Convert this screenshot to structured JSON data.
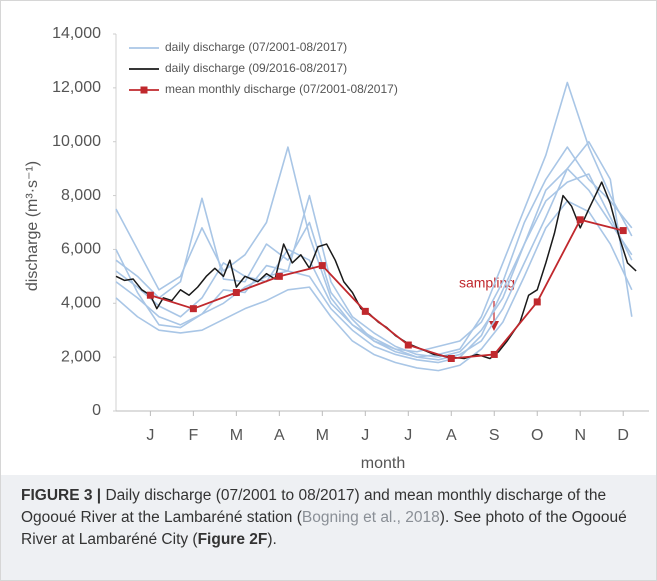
{
  "chart_data": {
    "type": "line",
    "y_label": "discharge (m³·s⁻¹)",
    "x_label": "month",
    "annotation": "sampling",
    "xlim": [
      0.2,
      12.6
    ],
    "xticks": [
      {
        "value": 1,
        "label": "J"
      },
      {
        "value": 2,
        "label": "F"
      },
      {
        "value": 3,
        "label": "M"
      },
      {
        "value": 4,
        "label": "A"
      },
      {
        "value": 5,
        "label": "M"
      },
      {
        "value": 6,
        "label": "J"
      },
      {
        "value": 7,
        "label": "J"
      },
      {
        "value": 8,
        "label": "A"
      },
      {
        "value": 9,
        "label": "S"
      },
      {
        "value": 10,
        "label": "O"
      },
      {
        "value": 11,
        "label": "N"
      },
      {
        "value": 12,
        "label": "D"
      }
    ],
    "ylim": [
      0,
      14000
    ],
    "yticks": [
      0,
      {
        "value": 2000,
        "label": "2,000"
      },
      {
        "value": 4000,
        "label": "4,000"
      },
      {
        "value": 6000,
        "label": "6,000"
      },
      {
        "value": 8000,
        "label": "8,000"
      },
      {
        "value": 10000,
        "label": "10,000"
      },
      {
        "value": 12000,
        "label": "12,000"
      },
      {
        "value": 14000,
        "label": "14,000"
      }
    ],
    "series": [
      {
        "name": "daily discharge (07/2001-08/2017)",
        "color": "#a9c6e6",
        "x": [
          0.2,
          0.7,
          1.2,
          1.7,
          2.2,
          2.7,
          3.2,
          3.7,
          4.2,
          4.7,
          5.2,
          5.7,
          6.2,
          6.7,
          7.2,
          7.7,
          8.2,
          8.7,
          9.2,
          9.7,
          10.2,
          10.7,
          11.2,
          11.7,
          12.2
        ],
        "lines": [
          [
            7500,
            6000,
            4500,
            5000,
            6800,
            5200,
            5800,
            7000,
            9800,
            6500,
            4200,
            3200,
            2600,
            2300,
            2000,
            2100,
            2300,
            3500,
            5500,
            7500,
            9500,
            12200,
            9800,
            8000,
            6500
          ],
          [
            4800,
            4200,
            3500,
            3200,
            3600,
            4000,
            4600,
            5000,
            5200,
            5000,
            3800,
            3000,
            2400,
            2100,
            1900,
            1800,
            2000,
            2800,
            4500,
            6200,
            7800,
            8500,
            8800,
            7200,
            5600
          ],
          [
            5200,
            4600,
            3900,
            3500,
            4200,
            5500,
            5000,
            4800,
            6000,
            5600,
            4000,
            3200,
            2700,
            2300,
            2200,
            2400,
            2600,
            3300,
            4800,
            7000,
            8600,
            9800,
            8600,
            7800,
            6800
          ],
          [
            4200,
            3500,
            3000,
            2900,
            3000,
            3400,
            3800,
            4100,
            4500,
            4600,
            3500,
            2600,
            2100,
            1800,
            1600,
            1500,
            1700,
            2300,
            3300,
            5000,
            6800,
            7800,
            7400,
            6200,
            4500
          ],
          [
            6000,
            4400,
            3200,
            3100,
            3600,
            4500,
            4400,
            5400,
            5200,
            8000,
            4800,
            3500,
            2900,
            2400,
            2100,
            2000,
            2200,
            3000,
            4200,
            6200,
            8200,
            9000,
            10000,
            8600,
            3500
          ],
          [
            5600,
            5000,
            4200,
            4800,
            7900,
            4900,
            4800,
            6200,
            5600,
            7000,
            4400,
            3400,
            2600,
            2200,
            2000,
            1900,
            2100,
            2600,
            3800,
            5500,
            7200,
            9000,
            8200,
            7000,
            5800
          ]
        ]
      },
      {
        "name": "daily discharge (09/2016-08/2017)",
        "color": "#1a1a1a",
        "x": [
          0.2,
          0.4,
          0.6,
          0.8,
          1.0,
          1.15,
          1.3,
          1.5,
          1.7,
          1.9,
          2.1,
          2.3,
          2.5,
          2.7,
          2.85,
          3.0,
          3.2,
          3.5,
          3.7,
          3.9,
          4.1,
          4.3,
          4.5,
          4.7,
          4.9,
          5.1,
          5.3,
          5.5,
          5.7,
          5.9,
          6.1,
          6.3,
          6.5,
          6.7,
          7.0,
          7.3,
          7.6,
          8.0,
          8.3,
          8.6,
          8.9,
          9.1,
          9.3,
          9.6,
          9.8,
          10.0,
          10.2,
          10.4,
          10.6,
          10.8,
          11.0,
          11.2,
          11.5,
          11.7,
          11.9,
          12.1,
          12.3
        ],
        "values": [
          5000,
          4850,
          4900,
          4500,
          4300,
          3800,
          4200,
          4100,
          4500,
          4300,
          4600,
          5000,
          5300,
          5000,
          5600,
          4600,
          5000,
          4800,
          5100,
          4900,
          6200,
          5500,
          5800,
          5300,
          6100,
          6200,
          5600,
          4800,
          4400,
          3800,
          3600,
          3300,
          3100,
          2800,
          2500,
          2300,
          2100,
          2000,
          1950,
          2100,
          1950,
          2200,
          2600,
          3300,
          4300,
          4500,
          5500,
          6600,
          8000,
          7600,
          6800,
          7500,
          8500,
          7700,
          6500,
          5500,
          5200
        ]
      },
      {
        "name": "mean monthly discharge (07/2001-08/2017)",
        "color": "#c0282d",
        "x": [
          1,
          2,
          3,
          4,
          5,
          6,
          7,
          8,
          9,
          10,
          11,
          12
        ],
        "values": [
          4300,
          3800,
          4400,
          5000,
          5400,
          3700,
          2450,
          1950,
          2100,
          4050,
          7100,
          6700
        ]
      }
    ]
  },
  "caption": {
    "parts": [
      "FIGURE 3 |",
      " Daily discharge (07/2001 to 08/2017) and mean monthly discharge of the Ogooué River at the Lambaréné station (",
      "Bogning et al., 2018",
      "). See photo of the Ogooué River at Lambaréné City (",
      "Figure 2F",
      ")."
    ]
  }
}
